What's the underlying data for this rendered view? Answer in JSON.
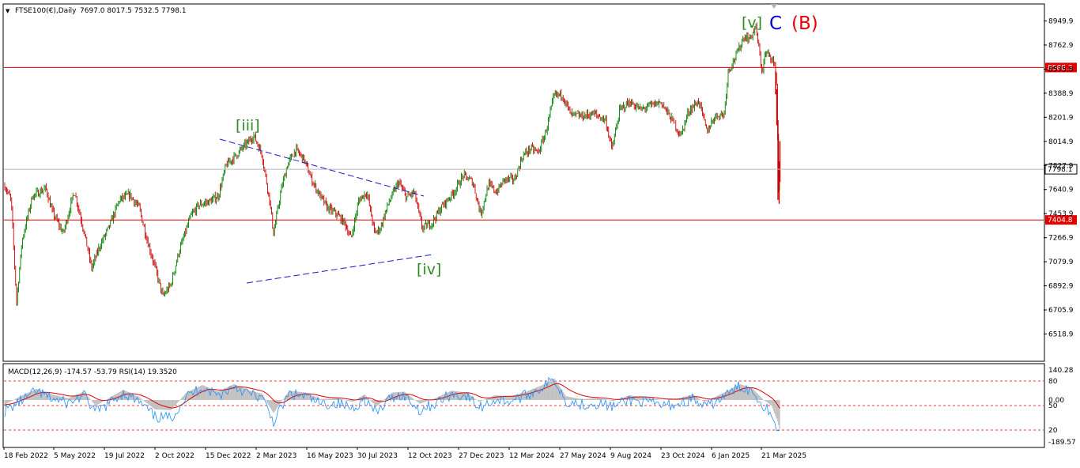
{
  "header": {
    "symbol": "FTSE100(€),Daily",
    "ohlc": "7697.0 8017.5 7532.5 7798.1"
  },
  "macd_header": "MACD(12,26,9) -174.57 -53.79  RSI(14) 19.3520",
  "colors": {
    "bull_candle": "#008000",
    "bear_candle": "#cc0000",
    "hline": "#e00000",
    "trendline": "#1a1acc",
    "wave_green": "#2e8b22",
    "wave_blue": "#0000dd",
    "wave_red": "#ee0000",
    "macd_hist": "#c0c0c0",
    "macd_signal": "#e00000",
    "rsi": "#1e90ff"
  },
  "chart_data": [
    {
      "type": "candlestick",
      "timeframe": "Daily",
      "y_range": [
        6518.9,
        9040
      ],
      "price_ticks": [
        "8949.9",
        "8762.9",
        "8575.8",
        "8388.9",
        "8201.9",
        "8014.9",
        "7827.9",
        "7640.9",
        "7453.9",
        "7266.9",
        "7079.9",
        "6892.9",
        "6705.9",
        "6518.9"
      ],
      "date_ticks": [
        "18 Feb 2022",
        "5 May 2022",
        "19 Jul 2022",
        "2 Oct 2022",
        "15 Dec 2022",
        "2 Mar 2023",
        "16 May 2023",
        "30 Jul 2023",
        "12 Oct 2023",
        "27 Dec 2023",
        "12 Mar 2024",
        "27 May 2024",
        "9 Aug 2024",
        "23 Oct 2024",
        "6 Jan 2025",
        "21 Mar 2025"
      ],
      "horizontal_lines": [
        {
          "price": 8588.3,
          "label": "8588.3"
        },
        {
          "price": 7404.8,
          "label": "7404.8"
        }
      ],
      "current_price": {
        "price": 7798.1,
        "label": "7798.1"
      },
      "wave_labels": [
        {
          "text": "[iii]",
          "color": "green"
        },
        {
          "text": "[iv]",
          "color": "green"
        },
        {
          "text": "[v]",
          "color": "green"
        },
        {
          "text": "C",
          "color": "blue"
        },
        {
          "text": "(B)",
          "color": "red"
        }
      ],
      "trendlines": [
        {
          "from": [
            "Nov 2022",
            8080
          ],
          "to": [
            "Oct 2023",
            7660
          ]
        },
        {
          "from": [
            "Jan 2023",
            7090
          ],
          "to": [
            "Oct 2023",
            7290
          ]
        }
      ],
      "path": [
        [
          0,
          7670
        ],
        [
          8,
          7560
        ],
        [
          15,
          6770
        ],
        [
          22,
          7250
        ],
        [
          35,
          7590
        ],
        [
          52,
          7650
        ],
        [
          60,
          7470
        ],
        [
          74,
          7300
        ],
        [
          88,
          7630
        ],
        [
          100,
          7320
        ],
        [
          110,
          7030
        ],
        [
          120,
          7200
        ],
        [
          132,
          7350
        ],
        [
          145,
          7560
        ],
        [
          158,
          7600
        ],
        [
          170,
          7500
        ],
        [
          180,
          7250
        ],
        [
          190,
          7040
        ],
        [
          200,
          6810
        ],
        [
          210,
          6900
        ],
        [
          220,
          7150
        ],
        [
          235,
          7430
        ],
        [
          245,
          7520
        ],
        [
          260,
          7550
        ],
        [
          270,
          7590
        ],
        [
          280,
          7830
        ],
        [
          293,
          7910
        ],
        [
          305,
          7990
        ],
        [
          315,
          8060
        ],
        [
          325,
          7920
        ],
        [
          335,
          7560
        ],
        [
          340,
          7300
        ],
        [
          350,
          7650
        ],
        [
          358,
          7840
        ],
        [
          368,
          7950
        ],
        [
          378,
          7880
        ],
        [
          388,
          7720
        ],
        [
          398,
          7600
        ],
        [
          408,
          7500
        ],
        [
          420,
          7450
        ],
        [
          430,
          7380
        ],
        [
          438,
          7260
        ],
        [
          448,
          7560
        ],
        [
          458,
          7620
        ],
        [
          468,
          7300
        ],
        [
          475,
          7340
        ],
        [
          485,
          7530
        ],
        [
          498,
          7700
        ],
        [
          508,
          7580
        ],
        [
          518,
          7620
        ],
        [
          528,
          7340
        ],
        [
          540,
          7380
        ],
        [
          552,
          7500
        ],
        [
          568,
          7620
        ],
        [
          580,
          7750
        ],
        [
          592,
          7700
        ],
        [
          602,
          7450
        ],
        [
          612,
          7680
        ],
        [
          622,
          7620
        ],
        [
          632,
          7720
        ],
        [
          645,
          7720
        ],
        [
          655,
          7900
        ],
        [
          665,
          7960
        ],
        [
          675,
          7930
        ],
        [
          684,
          8080
        ],
        [
          695,
          8370
        ],
        [
          705,
          8380
        ],
        [
          716,
          8220
        ],
        [
          730,
          8210
        ],
        [
          745,
          8230
        ],
        [
          760,
          8180
        ],
        [
          768,
          7950
        ],
        [
          778,
          8260
        ],
        [
          790,
          8320
        ],
        [
          805,
          8260
        ],
        [
          815,
          8290
        ],
        [
          830,
          8320
        ],
        [
          845,
          8170
        ],
        [
          855,
          8060
        ],
        [
          865,
          8250
        ],
        [
          878,
          8330
        ],
        [
          888,
          8090
        ],
        [
          898,
          8210
        ],
        [
          910,
          8230
        ],
        [
          915,
          8560
        ],
        [
          925,
          8680
        ],
        [
          935,
          8830
        ],
        [
          942,
          8810
        ],
        [
          950,
          8900
        ],
        [
          958,
          8550
        ],
        [
          962,
          8700
        ],
        [
          970,
          8670
        ],
        [
          976,
          8540
        ],
        [
          979,
          7560
        ],
        [
          980,
          7800
        ]
      ]
    },
    {
      "type": "line",
      "title": "MACD(12,26,9) -174.57 -53.79  RSI(14) 19.3520",
      "y_range": [
        -189.57,
        140.28
      ],
      "ticks": [
        "140.28",
        "80",
        "50",
        "0.00",
        "20",
        "-189.57"
      ],
      "levels": [
        80,
        50,
        20
      ],
      "series": [
        {
          "name": "MACD(12,26,9)",
          "values_last": -174.57
        },
        {
          "name": "RSI(14)",
          "values_last": 19.352
        }
      ],
      "macd_path": [
        [
          0,
          -25
        ],
        [
          20,
          20
        ],
        [
          40,
          60
        ],
        [
          60,
          30
        ],
        [
          80,
          10
        ],
        [
          100,
          45
        ],
        [
          115,
          -30
        ],
        [
          130,
          5
        ],
        [
          150,
          55
        ],
        [
          170,
          15
        ],
        [
          190,
          -50
        ],
        [
          210,
          -55
        ],
        [
          230,
          40
        ],
        [
          250,
          80
        ],
        [
          270,
          45
        ],
        [
          290,
          85
        ],
        [
          310,
          50
        ],
        [
          325,
          35
        ],
        [
          340,
          -70
        ],
        [
          360,
          50
        ],
        [
          380,
          40
        ],
        [
          400,
          5
        ],
        [
          420,
          10
        ],
        [
          440,
          -10
        ],
        [
          455,
          30
        ],
        [
          470,
          -35
        ],
        [
          490,
          40
        ],
        [
          505,
          45
        ],
        [
          525,
          -20
        ],
        [
          545,
          10
        ],
        [
          565,
          50
        ],
        [
          585,
          40
        ],
        [
          600,
          -10
        ],
        [
          620,
          25
        ],
        [
          640,
          20
        ],
        [
          660,
          45
        ],
        [
          680,
          80
        ],
        [
          695,
          115
        ],
        [
          710,
          20
        ],
        [
          730,
          5
        ],
        [
          750,
          10
        ],
        [
          770,
          -5
        ],
        [
          790,
          25
        ],
        [
          810,
          15
        ],
        [
          830,
          0
        ],
        [
          850,
          5
        ],
        [
          870,
          30
        ],
        [
          885,
          -10
        ],
        [
          900,
          20
        ],
        [
          915,
          50
        ],
        [
          930,
          85
        ],
        [
          945,
          65
        ],
        [
          960,
          0
        ],
        [
          970,
          -30
        ],
        [
          978,
          -120
        ],
        [
          981,
          -175
        ]
      ]
    }
  ]
}
